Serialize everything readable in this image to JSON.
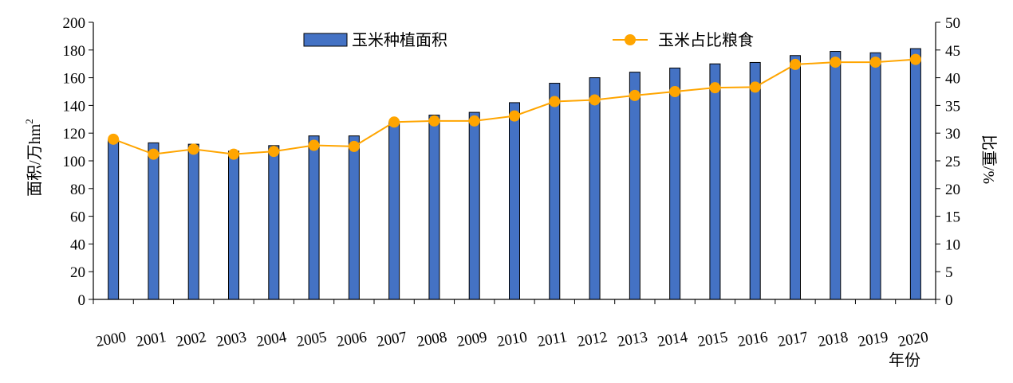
{
  "chart_data": {
    "type": "bar",
    "categories": [
      "2000",
      "2001",
      "2002",
      "2003",
      "2004",
      "2005",
      "2006",
      "2007",
      "2008",
      "2009",
      "2010",
      "2011",
      "2012",
      "2013",
      "2014",
      "2015",
      "2016",
      "2017",
      "2018",
      "2019",
      "2020"
    ],
    "series": [
      {
        "name": "玉米种植面积",
        "type": "bar",
        "axis": "left",
        "color": "#4472C4",
        "values": [
          115,
          113,
          112,
          107,
          111,
          118,
          118,
          128,
          133,
          135,
          142,
          156,
          160,
          164,
          167,
          170,
          171,
          176,
          179,
          178,
          181
        ]
      },
      {
        "name": "玉米占比粮食",
        "type": "line",
        "axis": "right",
        "color": "#FFA500",
        "values": [
          28.9,
          26.2,
          27.1,
          26.2,
          26.7,
          27.8,
          27.6,
          32.0,
          32.2,
          32.2,
          33.1,
          35.7,
          36.0,
          36.8,
          37.5,
          38.2,
          38.3,
          42.4,
          42.8,
          42.8,
          43.3
        ]
      }
    ],
    "ylabel": "面积/万hm",
    "ylabel_sup": "2",
    "y2label": "比重/%",
    "xlabel": "年份",
    "ylim": [
      0,
      200
    ],
    "y2lim": [
      0,
      50
    ],
    "yticks": [
      "0",
      "20",
      "40",
      "60",
      "80",
      "100",
      "120",
      "140",
      "160",
      "180",
      "200"
    ],
    "y2ticks": [
      "0",
      "5",
      "10",
      "15",
      "20",
      "25",
      "30",
      "35",
      "40",
      "45",
      "50"
    ],
    "grid": false,
    "legend_position": "top"
  }
}
